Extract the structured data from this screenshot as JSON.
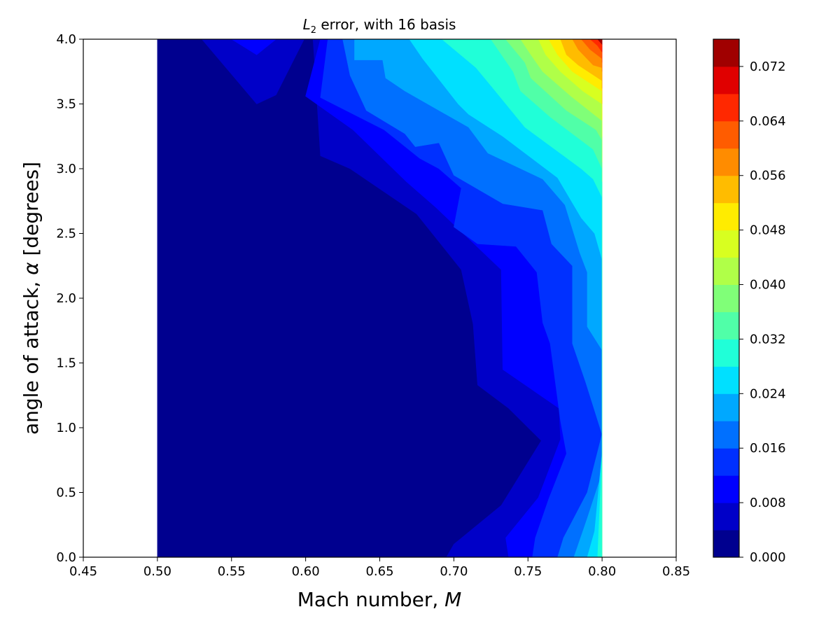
{
  "chart_data": {
    "type": "heatmap",
    "plot": "filled contour",
    "title_base": "L",
    "title_sub": "2",
    "title_rest": " error, with 16 basis",
    "xlabel_text": "Mach number, ",
    "xlabel_var": "M",
    "ylabel_text": "angle of attack, ",
    "ylabel_var": "α",
    "ylabel_unit": " [degrees]",
    "xlim": [
      0.45,
      0.85
    ],
    "ylim": [
      0.0,
      4.0
    ],
    "data_extent": {
      "x": [
        0.5,
        0.8
      ],
      "y": [
        0.0,
        4.0
      ]
    },
    "x_ticks": [
      "0.45",
      "0.50",
      "0.55",
      "0.60",
      "0.65",
      "0.70",
      "0.75",
      "0.80",
      "0.85"
    ],
    "y_ticks": [
      "0.0",
      "0.5",
      "1.0",
      "1.5",
      "2.0",
      "2.5",
      "3.0",
      "3.5",
      "4.0"
    ],
    "colorbar": {
      "range": [
        0.0,
        0.076
      ],
      "tick_labels": [
        "0.000",
        "0.008",
        "0.016",
        "0.024",
        "0.032",
        "0.040",
        "0.048",
        "0.056",
        "0.064",
        "0.072"
      ],
      "level_step": 0.004,
      "level_colors": [
        "#00008f",
        "#0000c8",
        "#0000ff",
        "#0030ff",
        "#0070ff",
        "#00a8ff",
        "#00e0ff",
        "#20ffd8",
        "#50ffa8",
        "#80ff78",
        "#b0ff48",
        "#d8ff20",
        "#ffec00",
        "#ffbc00",
        "#ff8c00",
        "#ff5c00",
        "#ff2800",
        "#e00000",
        "#a00000"
      ]
    },
    "contour_bands": [
      {
        "level": 0.0,
        "points": [
          [
            0.5,
            0.0
          ],
          [
            0.8,
            0.0
          ],
          [
            0.8,
            4.0
          ],
          [
            0.5,
            4.0
          ]
        ]
      },
      {
        "level": 0.004,
        "points": [
          [
            0.53,
            4.0
          ],
          [
            0.567,
            3.5
          ],
          [
            0.58,
            3.57
          ],
          [
            0.599,
            4.0
          ],
          [
            0.605,
            4.0
          ],
          [
            0.61,
            3.1
          ],
          [
            0.63,
            3.0
          ],
          [
            0.675,
            2.65
          ],
          [
            0.705,
            2.22
          ],
          [
            0.713,
            1.8
          ],
          [
            0.716,
            1.33
          ],
          [
            0.737,
            1.15
          ],
          [
            0.759,
            0.9
          ],
          [
            0.732,
            0.4
          ],
          [
            0.7,
            0.1
          ],
          [
            0.695,
            0.0
          ],
          [
            0.8,
            0.0
          ],
          [
            0.8,
            4.0
          ]
        ]
      },
      {
        "level": 0.008,
        "points": [
          [
            0.55,
            4.0
          ],
          [
            0.567,
            3.88
          ],
          [
            0.58,
            4.0
          ],
          [
            0.61,
            4.0
          ],
          [
            0.6,
            3.56
          ],
          [
            0.632,
            3.3
          ],
          [
            0.668,
            2.9
          ],
          [
            0.688,
            2.7
          ],
          [
            0.732,
            2.22
          ],
          [
            0.733,
            1.45
          ],
          [
            0.771,
            1.15
          ],
          [
            0.772,
            0.91
          ],
          [
            0.757,
            0.46
          ],
          [
            0.735,
            0.15
          ],
          [
            0.737,
            0.0
          ],
          [
            0.8,
            0.0
          ],
          [
            0.8,
            4.0
          ]
        ]
      },
      {
        "level": 0.012,
        "points": [
          [
            0.615,
            4.0
          ],
          [
            0.61,
            3.55
          ],
          [
            0.653,
            3.3
          ],
          [
            0.677,
            3.08
          ],
          [
            0.69,
            3.0
          ],
          [
            0.705,
            2.85
          ],
          [
            0.7,
            2.55
          ],
          [
            0.716,
            2.42
          ],
          [
            0.742,
            2.4
          ],
          [
            0.756,
            2.2
          ],
          [
            0.76,
            1.81
          ],
          [
            0.765,
            1.65
          ],
          [
            0.772,
            1.05
          ],
          [
            0.776,
            0.8
          ],
          [
            0.764,
            0.45
          ],
          [
            0.755,
            0.15
          ],
          [
            0.753,
            0.0
          ],
          [
            0.8,
            0.0
          ],
          [
            0.8,
            4.0
          ]
        ]
      },
      {
        "level": 0.016,
        "points": [
          [
            0.625,
            4.0
          ],
          [
            0.63,
            3.72
          ],
          [
            0.641,
            3.45
          ],
          [
            0.667,
            3.27
          ],
          [
            0.674,
            3.17
          ],
          [
            0.69,
            3.2
          ],
          [
            0.7,
            2.95
          ],
          [
            0.733,
            2.73
          ],
          [
            0.76,
            2.68
          ],
          [
            0.766,
            2.42
          ],
          [
            0.78,
            2.25
          ],
          [
            0.78,
            1.65
          ],
          [
            0.789,
            1.35
          ],
          [
            0.8,
            0.95
          ],
          [
            0.79,
            0.5
          ],
          [
            0.774,
            0.15
          ],
          [
            0.77,
            0.0
          ],
          [
            0.8,
            0.0
          ],
          [
            0.8,
            4.0
          ]
        ]
      },
      {
        "level": 0.02,
        "points": [
          [
            0.633,
            4.0
          ],
          [
            0.633,
            3.84
          ],
          [
            0.652,
            3.84
          ],
          [
            0.654,
            3.7
          ],
          [
            0.667,
            3.6
          ],
          [
            0.71,
            3.32
          ],
          [
            0.723,
            3.12
          ],
          [
            0.76,
            2.92
          ],
          [
            0.775,
            2.72
          ],
          [
            0.785,
            2.35
          ],
          [
            0.79,
            2.2
          ],
          [
            0.79,
            1.78
          ],
          [
            0.8,
            1.6
          ],
          [
            0.8,
            1.0
          ],
          [
            0.8,
            0.65
          ],
          [
            0.79,
            0.3
          ],
          [
            0.781,
            0.0
          ],
          [
            0.8,
            0.0
          ],
          [
            0.8,
            4.0
          ]
        ]
      },
      {
        "level": 0.024,
        "points": [
          [
            0.644,
            4.0
          ],
          [
            0.67,
            4.0
          ],
          [
            0.679,
            3.85
          ],
          [
            0.703,
            3.5
          ],
          [
            0.71,
            3.42
          ],
          [
            0.733,
            3.25
          ],
          [
            0.77,
            2.93
          ],
          [
            0.786,
            2.62
          ],
          [
            0.795,
            2.5
          ],
          [
            0.8,
            2.3
          ],
          [
            0.8,
            1.5
          ],
          [
            0.8,
            0.8
          ],
          [
            0.795,
            0.2
          ],
          [
            0.79,
            0.0
          ],
          [
            0.8,
            0.0
          ],
          [
            0.8,
            4.0
          ]
        ]
      },
      {
        "level": 0.028,
        "points": [
          [
            0.665,
            4.0
          ],
          [
            0.692,
            4.0
          ],
          [
            0.715,
            3.78
          ],
          [
            0.728,
            3.6
          ],
          [
            0.748,
            3.32
          ],
          [
            0.786,
            3.0
          ],
          [
            0.794,
            2.92
          ],
          [
            0.8,
            2.78
          ],
          [
            0.8,
            2.32
          ],
          [
            0.8,
            1.8
          ],
          [
            0.8,
            0.8
          ],
          [
            0.797,
            0.0
          ],
          [
            0.8,
            0.0
          ],
          [
            0.8,
            4.0
          ]
        ]
      },
      {
        "level": 0.032,
        "points": [
          [
            0.68,
            4.0
          ],
          [
            0.725,
            4.0
          ],
          [
            0.74,
            3.75
          ],
          [
            0.745,
            3.6
          ],
          [
            0.765,
            3.4
          ],
          [
            0.794,
            3.15
          ],
          [
            0.8,
            3.0
          ],
          [
            0.8,
            2.85
          ],
          [
            0.8,
            2.55
          ],
          [
            0.8,
            2.0
          ],
          [
            0.8,
            1.0
          ],
          [
            0.8,
            0.0
          ],
          [
            0.8,
            4.0
          ]
        ]
      },
      {
        "level": 0.036,
        "points": [
          [
            0.725,
            4.0
          ],
          [
            0.735,
            4.0
          ],
          [
            0.748,
            3.82
          ],
          [
            0.752,
            3.7
          ],
          [
            0.776,
            3.45
          ],
          [
            0.796,
            3.3
          ],
          [
            0.8,
            3.22
          ],
          [
            0.8,
            2.9
          ],
          [
            0.8,
            4.0
          ]
        ]
      },
      {
        "level": 0.04,
        "points": [
          [
            0.735,
            4.0
          ],
          [
            0.745,
            4.0
          ],
          [
            0.752,
            3.88
          ],
          [
            0.76,
            3.75
          ],
          [
            0.779,
            3.56
          ],
          [
            0.8,
            3.37
          ],
          [
            0.8,
            3.05
          ],
          [
            0.8,
            4.0
          ]
        ]
      },
      {
        "level": 0.044,
        "points": [
          [
            0.745,
            4.0
          ],
          [
            0.757,
            4.0
          ],
          [
            0.762,
            3.88
          ],
          [
            0.772,
            3.75
          ],
          [
            0.787,
            3.6
          ],
          [
            0.8,
            3.5
          ],
          [
            0.8,
            3.25
          ],
          [
            0.8,
            4.0
          ]
        ]
      },
      {
        "level": 0.048,
        "points": [
          [
            0.757,
            4.0
          ],
          [
            0.764,
            4.0
          ],
          [
            0.77,
            3.88
          ],
          [
            0.78,
            3.75
          ],
          [
            0.8,
            3.6
          ],
          [
            0.8,
            3.38
          ],
          [
            0.8,
            4.0
          ]
        ]
      },
      {
        "level": 0.052,
        "points": [
          [
            0.764,
            4.0
          ],
          [
            0.772,
            4.0
          ],
          [
            0.776,
            3.88
          ],
          [
            0.784,
            3.8
          ],
          [
            0.8,
            3.68
          ],
          [
            0.8,
            3.5
          ],
          [
            0.8,
            4.0
          ]
        ]
      },
      {
        "level": 0.056,
        "points": [
          [
            0.772,
            4.0
          ],
          [
            0.78,
            4.0
          ],
          [
            0.784,
            3.92
          ],
          [
            0.794,
            3.8
          ],
          [
            0.8,
            3.78
          ],
          [
            0.8,
            3.62
          ],
          [
            0.8,
            4.0
          ]
        ]
      },
      {
        "level": 0.06,
        "points": [
          [
            0.78,
            4.0
          ],
          [
            0.786,
            4.0
          ],
          [
            0.792,
            3.92
          ],
          [
            0.8,
            3.85
          ],
          [
            0.8,
            3.75
          ],
          [
            0.8,
            4.0
          ]
        ]
      },
      {
        "level": 0.064,
        "points": [
          [
            0.786,
            4.0
          ],
          [
            0.792,
            4.0
          ],
          [
            0.797,
            3.95
          ],
          [
            0.8,
            3.9
          ],
          [
            0.8,
            3.82
          ],
          [
            0.8,
            4.0
          ]
        ]
      },
      {
        "level": 0.068,
        "points": [
          [
            0.792,
            4.0
          ],
          [
            0.797,
            4.0
          ],
          [
            0.8,
            3.97
          ],
          [
            0.8,
            3.9
          ],
          [
            0.8,
            4.0
          ]
        ]
      },
      {
        "level": 0.072,
        "points": [
          [
            0.797,
            4.0
          ],
          [
            0.8,
            4.0
          ],
          [
            0.8,
            3.96
          ]
        ]
      }
    ]
  }
}
